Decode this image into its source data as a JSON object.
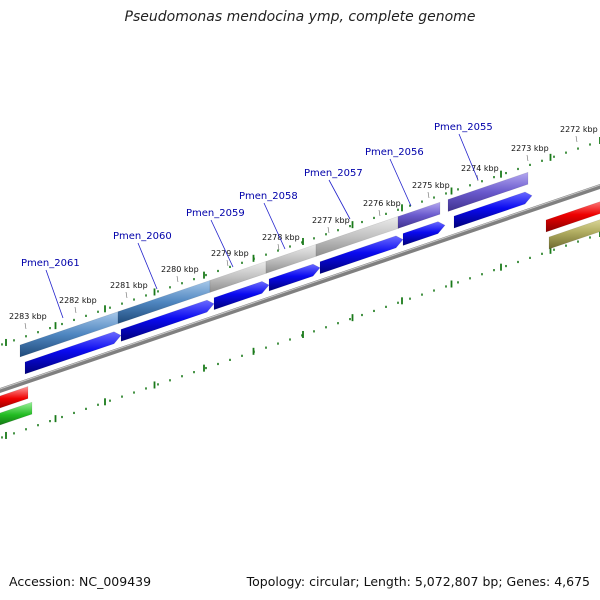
{
  "title": "Pseudomonas mendocina ymp, complete genome",
  "footer": {
    "accession": "Accession: NC_009439",
    "summary": "Topology: circular; Length: 5,072,807 bp; Genes: 4,675"
  },
  "colors": {
    "backbone": "#808080",
    "tick": "#1a7a1a",
    "label": "#0000aa",
    "label_line": "#2222cc",
    "cds": "#0000ee",
    "steel_blue_gene": "#3b6fa8",
    "grey_gene": "#b8b8b8",
    "purple_gene": "#6a5acd",
    "red_gene": "#ee0000",
    "green_gene": "#22bb22",
    "olive_gene": "#b0ac60"
  },
  "ruler_labels": [
    "2283 kbp",
    "2282 kbp",
    "2281 kbp",
    "2280 kbp",
    "2279 kbp",
    "2278 kbp",
    "2277 kbp",
    "2276 kbp",
    "2275 kbp",
    "2274 kbp",
    "2273 kbp",
    "2272 kbp"
  ],
  "genes": [
    {
      "name": "Pmen_2061",
      "color": "steel_blue"
    },
    {
      "name": "Pmen_2060",
      "color": "steel_blue"
    },
    {
      "name": "Pmen_2059",
      "color": "grey"
    },
    {
      "name": "Pmen_2058",
      "color": "grey"
    },
    {
      "name": "Pmen_2057",
      "color": "grey"
    },
    {
      "name": "Pmen_2056",
      "color": "purple"
    },
    {
      "name": "Pmen_2055",
      "color": "purple"
    }
  ]
}
